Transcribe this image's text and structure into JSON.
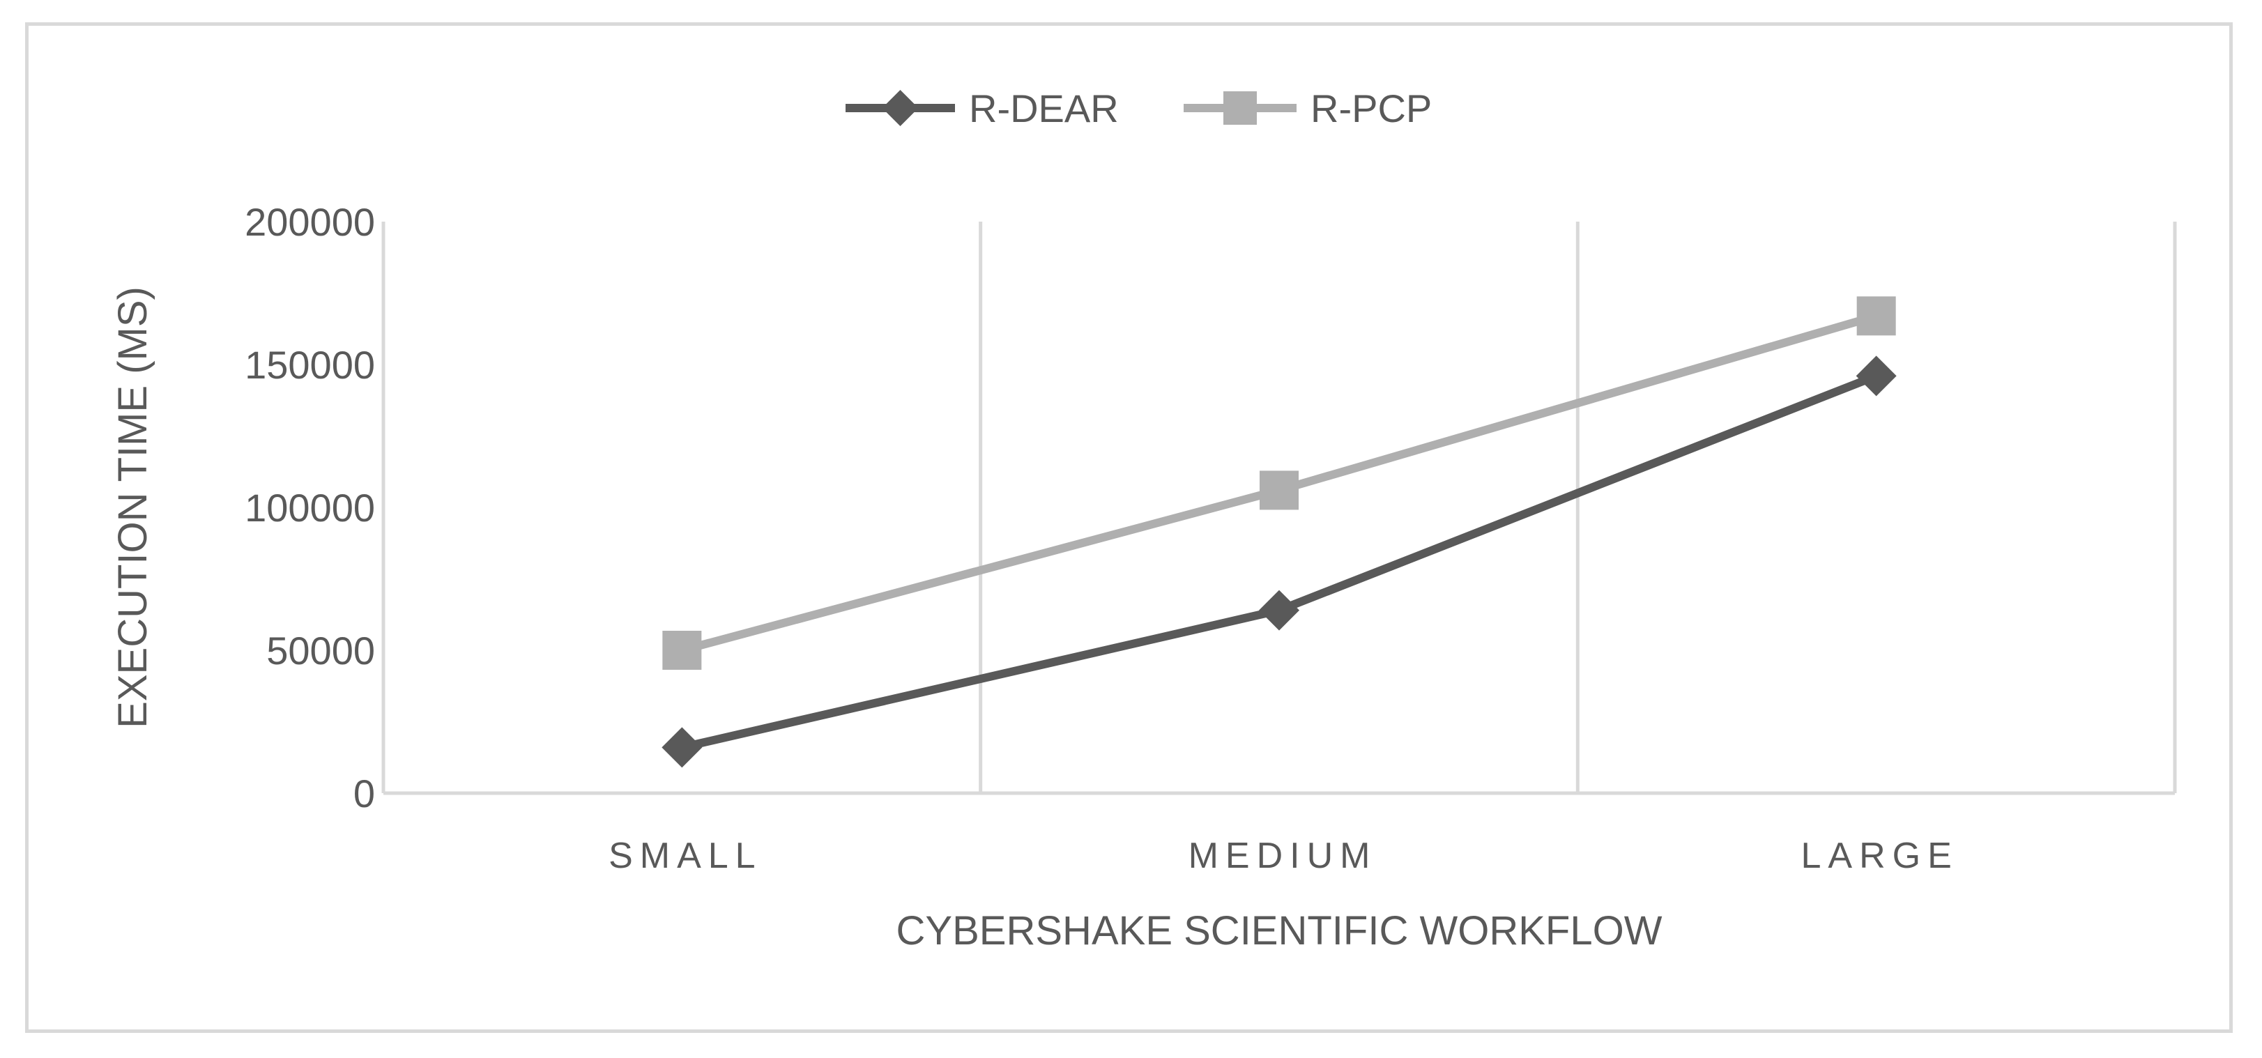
{
  "chart_data": {
    "type": "line",
    "categories": [
      "SMALL",
      "MEDIUM",
      "LARGE"
    ],
    "series": [
      {
        "name": "R-DEAR",
        "values": [
          16000,
          64000,
          146000
        ],
        "color": "#595959",
        "marker": "diamond"
      },
      {
        "name": "R-PCP",
        "values": [
          50000,
          106000,
          167000
        ],
        "color": "#afafaf",
        "marker": "square"
      }
    ],
    "title": "",
    "xlabel": "CYBERSHAKE SCIENTIFIC WORKFLOW",
    "ylabel": "EXECUTION TIME (MS)",
    "ylim": [
      0,
      200000
    ],
    "yticks": [
      "0",
      "50000",
      "100000",
      "150000",
      "200000"
    ],
    "grid": "vertical",
    "legend": "top-center"
  }
}
